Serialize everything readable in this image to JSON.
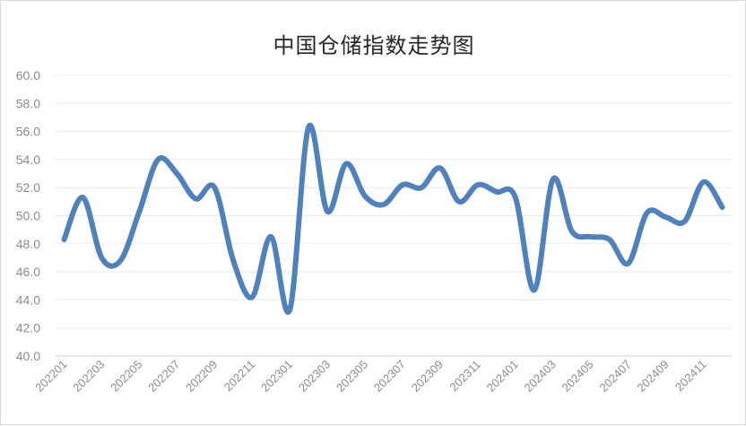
{
  "chart_data": {
    "type": "line",
    "title": "中国仓储指数走势图",
    "xlabel": "",
    "ylabel": "",
    "ylim": [
      40,
      60
    ],
    "yticks": [
      "40.0",
      "42.0",
      "44.0",
      "46.0",
      "48.0",
      "50.0",
      "52.0",
      "54.0",
      "56.0",
      "58.0",
      "60.0"
    ],
    "grid": true,
    "legend": "none",
    "line_color": "#4f81bd",
    "categories": [
      "202201",
      "202202",
      "202203",
      "202204",
      "202205",
      "202206",
      "202207",
      "202208",
      "202209",
      "202210",
      "202211",
      "202212",
      "202301",
      "202302",
      "202303",
      "202304",
      "202305",
      "202306",
      "202307",
      "202308",
      "202309",
      "202310",
      "202311",
      "202312",
      "202401",
      "202402",
      "202403",
      "202404",
      "202405",
      "202406",
      "202407",
      "202408",
      "202409",
      "202410",
      "202411",
      "202412"
    ],
    "xticks": [
      "202201",
      "202203",
      "202205",
      "202207",
      "202209",
      "202211",
      "202301",
      "202303",
      "202305",
      "202307",
      "202309",
      "202311",
      "202401",
      "202403",
      "202405",
      "202407",
      "202409",
      "202411"
    ],
    "series": [
      {
        "values": [
          48.3,
          51.3,
          47.0,
          46.8,
          50.3,
          54.0,
          53.0,
          51.2,
          52.0,
          46.8,
          44.2,
          48.5,
          43.3,
          56.3,
          50.3,
          53.7,
          51.4,
          50.8,
          52.2,
          52.0,
          53.4,
          51.0,
          52.2,
          51.7,
          51.3,
          44.7,
          52.6,
          48.9,
          48.5,
          48.3,
          46.6,
          50.2,
          49.9,
          49.6,
          52.4,
          50.6
        ]
      }
    ]
  }
}
